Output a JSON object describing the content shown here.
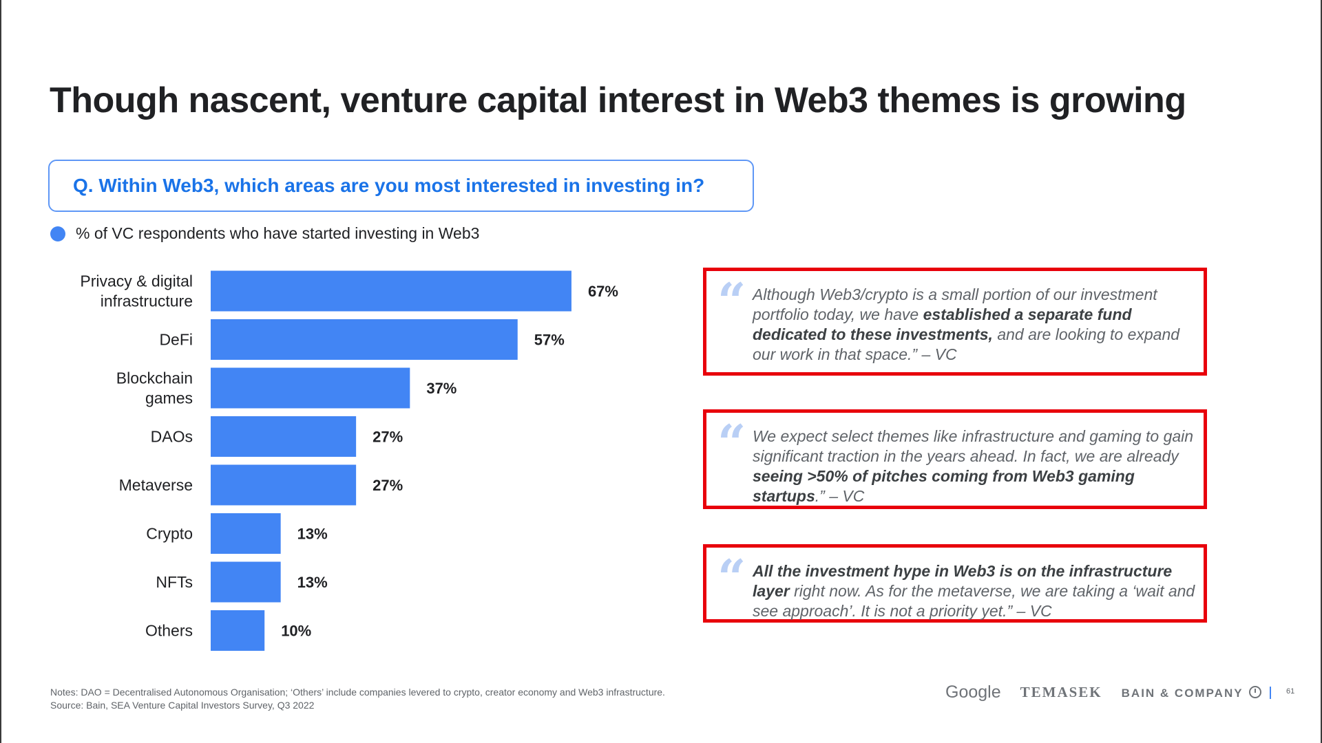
{
  "title": "Though nascent, venture capital interest in Web3 themes is growing",
  "question": "Q. Within Web3, which areas are you most interested in investing in?",
  "legend": {
    "label": "% of VC respondents who have started investing in Web3",
    "color": "#4285f4"
  },
  "chart_data": {
    "type": "bar",
    "orientation": "horizontal",
    "categories": [
      [
        "Privacy & digital",
        "infrastructure"
      ],
      [
        "DeFi"
      ],
      [
        "Blockchain",
        "games"
      ],
      [
        "DAOs"
      ],
      [
        "Metaverse"
      ],
      [
        "Crypto"
      ],
      [
        "NFTs"
      ],
      [
        "Others"
      ]
    ],
    "values": [
      67,
      57,
      37,
      27,
      27,
      13,
      13,
      10
    ],
    "value_labels": [
      "67%",
      "57%",
      "37%",
      "27%",
      "27%",
      "13%",
      "13%",
      "10%"
    ],
    "color": "#4285f4",
    "xlim": [
      0,
      100
    ]
  },
  "quotes": [
    {
      "parts": [
        {
          "text": "Although Web3/crypto is a small portion of our investment portfolio today, we have ",
          "bold": false
        },
        {
          "text": "established a separate fund dedicated to these investments,",
          "bold": true
        },
        {
          "text": " and are looking to expand our work in that space.” – VC",
          "bold": false
        }
      ]
    },
    {
      "parts": [
        {
          "text": "We expect select themes like infrastructure and gaming to gain significant traction in the years ahead. In fact, we are already ",
          "bold": false
        },
        {
          "text": "seeing >50% of pitches coming from Web3 gaming startups",
          "bold": true
        },
        {
          "text": ".” – VC",
          "bold": false
        }
      ]
    },
    {
      "parts": [
        {
          "text": "All the investment hype in Web3 is on the infrastructure layer",
          "bold": true
        },
        {
          "text": " right now. As for the metaverse, we are taking a ‘wait and see approach’. It is not a priority yet.” – VC",
          "bold": false
        }
      ]
    }
  ],
  "quote_mark": "“",
  "accent_colors": {
    "quote_border": "#e8000b",
    "question_text": "#1a73e8"
  },
  "notes": [
    "Notes: DAO = Decentralised Autonomous Organisation; ‘Others’ include companies levered to crypto, creator economy and Web3 infrastructure.",
    "Source: Bain, SEA Venture Capital Investors Survey, Q3 2022"
  ],
  "footer": {
    "logos": {
      "google": "Google",
      "temasek": "TEMASEK",
      "bain": "BAIN & COMPANY"
    },
    "page_number": "61"
  }
}
